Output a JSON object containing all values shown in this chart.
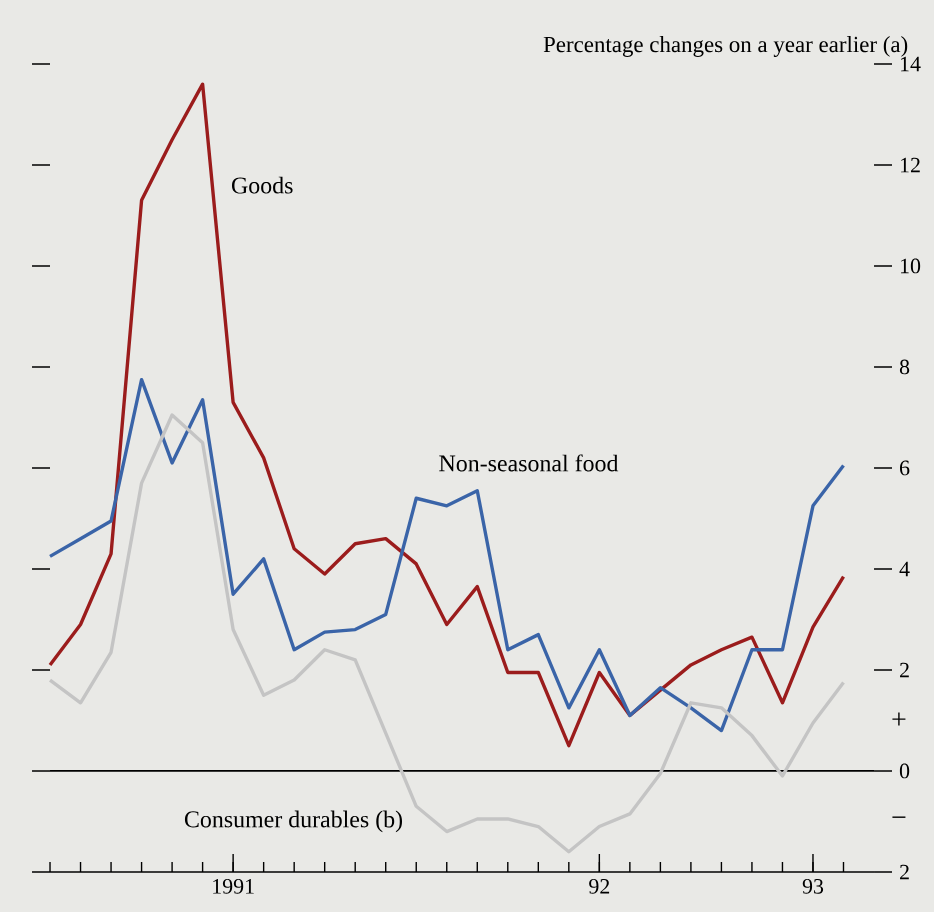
{
  "chart_data": {
    "type": "line",
    "ylabel": "Percentage changes on a year earlier (a)",
    "x": [
      "1991-01",
      "1991-02",
      "1991-03",
      "1991-04",
      "1991-05",
      "1991-06",
      "1991-07",
      "1991-08",
      "1991-09",
      "1991-10",
      "1991-11",
      "1991-12",
      "1992-01",
      "1992-02",
      "1992-03",
      "1992-04",
      "1992-05",
      "1992-06",
      "1992-07",
      "1992-08",
      "1992-09",
      "1992-10",
      "1992-11",
      "1992-12",
      "1993-01",
      "1993-02",
      "1993-03"
    ],
    "series": [
      {
        "name": "Goods",
        "color": "#9b1c1c",
        "values": [
          2.1,
          2.9,
          4.3,
          11.3,
          12.5,
          13.6,
          7.3,
          6.2,
          4.4,
          3.9,
          4.5,
          4.6,
          4.1,
          2.9,
          3.65,
          1.95,
          1.95,
          0.5,
          1.95,
          1.1,
          1.6,
          2.1,
          2.4,
          2.65,
          1.35,
          2.85,
          3.85
        ]
      },
      {
        "name": "Non-seasonal food",
        "color": "#3a64a8",
        "values": [
          4.25,
          4.6,
          4.95,
          7.75,
          6.1,
          7.35,
          3.5,
          4.2,
          2.4,
          2.75,
          2.8,
          3.1,
          5.4,
          5.25,
          5.55,
          2.4,
          2.7,
          1.25,
          2.4,
          1.1,
          1.65,
          1.25,
          0.8,
          2.4,
          2.4,
          5.25,
          6.05
        ]
      },
      {
        "name": "Consumer durables (b)",
        "color": "#c4c4c4",
        "values": [
          1.8,
          1.35,
          2.35,
          5.7,
          7.05,
          6.5,
          2.8,
          1.5,
          1.8,
          2.4,
          2.2,
          0.75,
          -0.7,
          -1.2,
          -0.95,
          -0.95,
          -1.1,
          -1.6,
          -1.1,
          -0.85,
          -0.05,
          1.35,
          1.25,
          0.7,
          -0.1,
          0.95,
          1.75
        ]
      }
    ],
    "xlim": [
      "1991-01",
      "1993-04"
    ],
    "xticks": [
      {
        "value": "1991-07",
        "label": "1991"
      },
      {
        "value": "1992-07",
        "label": "92"
      },
      {
        "value": "1993-02",
        "label": "93"
      }
    ],
    "ylim": [
      -2,
      14
    ],
    "yticks": [
      {
        "value": -2,
        "label": "2"
      },
      0,
      2,
      4,
      6,
      8,
      10,
      12,
      14
    ],
    "ref_lines": [
      {
        "axis": "y",
        "value": 0,
        "color": "#000000"
      }
    ],
    "annotations": [
      "+",
      "−"
    ]
  }
}
